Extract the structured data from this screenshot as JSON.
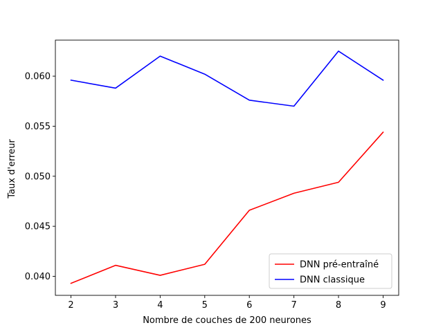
{
  "chart_data": {
    "type": "line",
    "title": "",
    "xlabel": "Nombre de couches de 200 neurones",
    "ylabel": "Taux d'erreur",
    "x": [
      2,
      3,
      4,
      5,
      6,
      7,
      8,
      9
    ],
    "xticks": [
      "2",
      "3",
      "4",
      "5",
      "6",
      "7",
      "8",
      "9"
    ],
    "yticks": [
      "0.040",
      "0.045",
      "0.050",
      "0.055",
      "0.060"
    ],
    "ytick_values": [
      0.04,
      0.045,
      0.05,
      0.055,
      0.06
    ],
    "xlim": [
      1.65,
      9.35
    ],
    "ylim": [
      0.0381,
      0.0636
    ],
    "grid": false,
    "legend_position": "lower-right",
    "series": [
      {
        "name": "DNN pré-entraîné",
        "color": "#ff0000",
        "values": [
          0.0393,
          0.0411,
          0.0401,
          0.0412,
          0.0466,
          0.0483,
          0.0494,
          0.0544
        ]
      },
      {
        "name": "DNN classique",
        "color": "#0000ff",
        "values": [
          0.0596,
          0.0588,
          0.062,
          0.0602,
          0.0576,
          0.057,
          0.0625,
          0.0596
        ]
      }
    ]
  }
}
